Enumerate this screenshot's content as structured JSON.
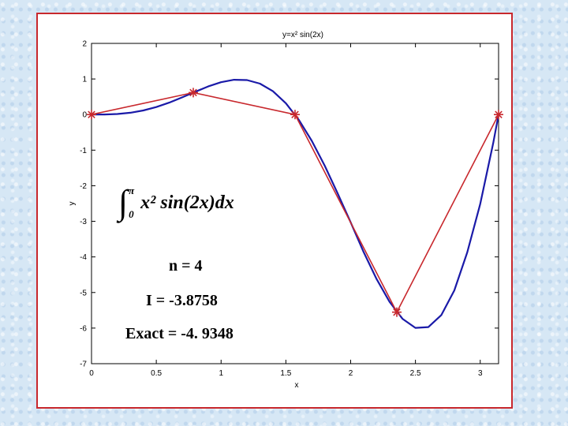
{
  "chart_data": {
    "type": "line",
    "title": "y=x² sin(2x)",
    "xlabel": "x",
    "ylabel": "y",
    "xlim": [
      0,
      3.1416
    ],
    "ylim": [
      -7,
      2
    ],
    "x_ticks": [
      "0",
      "0.5",
      "1",
      "1.5",
      "2",
      "2.5",
      "3"
    ],
    "y_ticks": [
      "2",
      "1",
      "0",
      "-1",
      "-2",
      "-3",
      "-4",
      "-5",
      "-6",
      "-7"
    ],
    "grid": false,
    "series": [
      {
        "function": "x^2 sin(2x)",
        "color": "#1a1aa8",
        "x": [
          0,
          0.1,
          0.2,
          0.3,
          0.4,
          0.5,
          0.6,
          0.7,
          0.8,
          0.9,
          1.0,
          1.1,
          1.2,
          1.3,
          1.4,
          1.5,
          1.6,
          1.7,
          1.8,
          1.9,
          2.0,
          2.1,
          2.2,
          2.3,
          2.4,
          2.5,
          2.6,
          2.7,
          2.8,
          2.9,
          3.0,
          3.1,
          3.1416
        ],
        "y": [
          0,
          0.002,
          0.016,
          0.051,
          0.115,
          0.21,
          0.336,
          0.483,
          0.64,
          0.789,
          0.909,
          0.978,
          0.97,
          0.869,
          0.657,
          0.318,
          -0.149,
          -0.738,
          -1.436,
          -2.221,
          -3.027,
          -3.861,
          -4.62,
          -5.262,
          -5.739,
          -5.993,
          -5.971,
          -5.632,
          -4.94,
          -3.873,
          -2.515,
          -0.802,
          0
        ]
      },
      {
        "function": "trapezoid n=4",
        "color": "#c8282d",
        "marker": "star",
        "x": [
          0,
          0.7854,
          1.5708,
          2.3562,
          3.1416
        ],
        "y": [
          0,
          0.617,
          0,
          -5.552,
          0
        ]
      }
    ],
    "annotations": {
      "integral": {
        "upper_limit": "π",
        "lower_limit": "0",
        "integrand": "x² sin(2x)dx"
      },
      "n_label": "n = 4",
      "result_label": "I = -3.8758",
      "exact_label": "Exact = -4. 9348"
    }
  },
  "colors": {
    "frame_border": "#c8282d",
    "curve": "#1a1aa8",
    "polyline": "#c8282d",
    "background": "#d6e7f5"
  }
}
